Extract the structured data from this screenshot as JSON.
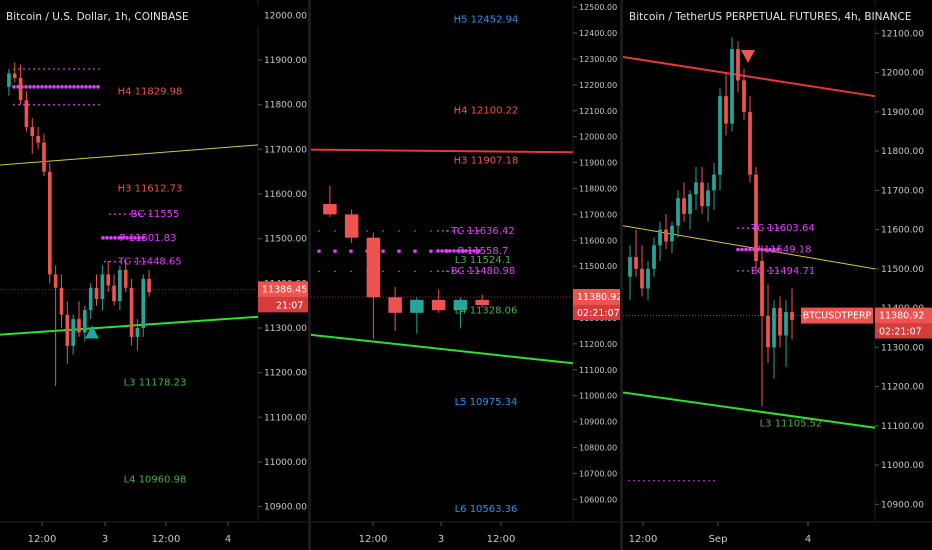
{
  "chart_data": [
    {
      "type": "candlestick",
      "title": "Bitcoin / U.S. Dollar, 1h, COINBASE",
      "y_ticks": [
        12000,
        11900,
        11800,
        11700,
        11600,
        11500,
        11400,
        11300,
        11200,
        11100,
        11000,
        10900
      ],
      "y_tick_labels": [
        "12000.00",
        "11900.00",
        "11800.00",
        "11700.00",
        "11600.00",
        "11500.00",
        "11400.00",
        "11300.00",
        "11200.00",
        "11100.00",
        "11000.00",
        "10900.00"
      ],
      "ylim": [
        10870,
        12030
      ],
      "x_ticks": [
        "12:00",
        "3",
        "12:00",
        "4"
      ],
      "price_label": "11386.45",
      "time_label": "21:07",
      "levels": [
        {
          "label": "H4 11829.98",
          "value": 11829.98,
          "color": "#ef5350"
        },
        {
          "label": "H3 11612.73",
          "value": 11612.73,
          "color": "#ef5350"
        },
        {
          "label": "BC 11555",
          "value": 11555,
          "color": "#e040fb"
        },
        {
          "label": "P 11501.83",
          "value": 11501.83,
          "color": "#e040fb"
        },
        {
          "label": "TC 11448.65",
          "value": 11448.65,
          "color": "#e040fb"
        },
        {
          "label": "L3 11178.23",
          "value": 11178.23,
          "color": "#4caf50"
        },
        {
          "label": "L4 10960.98",
          "value": 10960.98,
          "color": "#4caf50"
        }
      ],
      "candles": [
        {
          "o": 11840,
          "h": 11880,
          "l": 11820,
          "c": 11870
        },
        {
          "o": 11870,
          "h": 11895,
          "l": 11850,
          "c": 11860
        },
        {
          "o": 11860,
          "h": 11890,
          "l": 11800,
          "c": 11810
        },
        {
          "o": 11810,
          "h": 11830,
          "l": 11740,
          "c": 11750
        },
        {
          "o": 11750,
          "h": 11770,
          "l": 11690,
          "c": 11730
        },
        {
          "o": 11730,
          "h": 11750,
          "l": 11700,
          "c": 11715
        },
        {
          "o": 11715,
          "h": 11735,
          "l": 11640,
          "c": 11650
        },
        {
          "o": 11650,
          "h": 11670,
          "l": 11400,
          "c": 11420
        },
        {
          "o": 11420,
          "h": 11440,
          "l": 11170,
          "c": 11390
        },
        {
          "o": 11390,
          "h": 11420,
          "l": 11300,
          "c": 11330
        },
        {
          "o": 11330,
          "h": 11360,
          "l": 11220,
          "c": 11260
        },
        {
          "o": 11260,
          "h": 11330,
          "l": 11240,
          "c": 11320
        },
        {
          "o": 11320,
          "h": 11360,
          "l": 11280,
          "c": 11290
        },
        {
          "o": 11290,
          "h": 11350,
          "l": 11270,
          "c": 11340
        },
        {
          "o": 11340,
          "h": 11400,
          "l": 11320,
          "c": 11390
        },
        {
          "o": 11390,
          "h": 11420,
          "l": 11350,
          "c": 11365
        },
        {
          "o": 11365,
          "h": 11440,
          "l": 11340,
          "c": 11420
        },
        {
          "o": 11420,
          "h": 11450,
          "l": 11380,
          "c": 11395
        },
        {
          "o": 11395,
          "h": 11420,
          "l": 11350,
          "c": 11360
        },
        {
          "o": 11360,
          "h": 11440,
          "l": 11340,
          "c": 11430
        },
        {
          "o": 11430,
          "h": 11455,
          "l": 11380,
          "c": 11390
        },
        {
          "o": 11390,
          "h": 11410,
          "l": 11260,
          "c": 11280
        },
        {
          "o": 11280,
          "h": 11320,
          "l": 11250,
          "c": 11300
        },
        {
          "o": 11300,
          "h": 11420,
          "l": 11280,
          "c": 11410
        },
        {
          "o": 11410,
          "h": 11430,
          "l": 11370,
          "c": 11380
        }
      ],
      "upper_line": [
        [
          0,
          11665
        ],
        [
          1,
          11710
        ]
      ],
      "lower_line": [
        [
          0,
          11285
        ],
        [
          1,
          11325
        ]
      ]
    },
    {
      "type": "candlestick",
      "y_ticks": [
        12500,
        12400,
        12300,
        12200,
        12100,
        12000,
        11900,
        11800,
        11700,
        11600,
        11500,
        11400,
        11300,
        11200,
        11100,
        11000,
        10900,
        10800,
        10700,
        10600
      ],
      "y_tick_labels": [
        "12500.00",
        "12400.00",
        "12300.00",
        "12200.00",
        "12100.00",
        "12000.00",
        "11900.00",
        "11800.00",
        "11700.00",
        "11600.00",
        "11500.00",
        "11400.00",
        "11300.00",
        "11200.00",
        "11100.00",
        "11000.00",
        "10900.00",
        "10800.00",
        "10700.00",
        "10600.00"
      ],
      "ylim": [
        10520,
        12520
      ],
      "x_ticks": [
        "12:00",
        "3",
        "12:00"
      ],
      "price_label": "11380.92",
      "time_label": "02:21:07",
      "levels": [
        {
          "label": "H5 12452.94",
          "value": 12452.94,
          "color": "#2196f3"
        },
        {
          "label": "H4 12100.22",
          "value": 12100.22,
          "color": "#ef5350"
        },
        {
          "label": "H3 11907.18",
          "value": 11907.18,
          "color": "#ef5350"
        },
        {
          "label": "TC 11636.42",
          "value": 11636.42,
          "color": "#e040fb"
        },
        {
          "label": "P 11558.7",
          "value": 11558.7,
          "color": "#e040fb"
        },
        {
          "label": "L3 11524.1",
          "value": 11524.1,
          "color": "#4caf50"
        },
        {
          "label": "BC 11480.98",
          "value": 11480.98,
          "color": "#e040fb"
        },
        {
          "label": "L4 11328.06",
          "value": 11328.06,
          "color": "#4caf50"
        },
        {
          "label": "L5 10975.34",
          "value": 10975.34,
          "color": "#2196f3"
        },
        {
          "label": "L6 10563.36",
          "value": 10563.36,
          "color": "#2196f3"
        }
      ],
      "candles": [
        {
          "o": 11740,
          "h": 11810,
          "l": 11690,
          "c": 11700
        },
        {
          "o": 11700,
          "h": 11720,
          "l": 11590,
          "c": 11610
        },
        {
          "o": 11610,
          "h": 11630,
          "l": 11220,
          "c": 11380
        },
        {
          "o": 11380,
          "h": 11420,
          "l": 11250,
          "c": 11320
        },
        {
          "o": 11320,
          "h": 11380,
          "l": 11240,
          "c": 11370
        },
        {
          "o": 11370,
          "h": 11410,
          "l": 11320,
          "c": 11330
        },
        {
          "o": 11330,
          "h": 11380,
          "l": 11260,
          "c": 11370
        },
        {
          "o": 11370,
          "h": 11390,
          "l": 11340,
          "c": 11350
        }
      ],
      "upper_line": [
        [
          0,
          11950
        ],
        [
          1,
          11940
        ]
      ],
      "lower_line": [
        [
          0,
          11235
        ],
        [
          1,
          11125
        ]
      ]
    },
    {
      "type": "candlestick",
      "title": "Bitcoin / TetherUS PERPETUAL FUTURES, 4h, BINANCE",
      "y_ticks": [
        12100,
        12000,
        11900,
        11800,
        11700,
        11600,
        11500,
        11400,
        11300,
        11200,
        11100,
        11000,
        10900
      ],
      "y_tick_labels": [
        "12100.00",
        "12000.00",
        "11900.00",
        "11800.00",
        "11700.00",
        "11600.00",
        "11500.00",
        "11400.00",
        "11300.00",
        "11200.00",
        "11100.00",
        "11000.00",
        "10900.00"
      ],
      "ylim": [
        10860,
        12180
      ],
      "x_ticks": [
        "12:00",
        "Sep",
        "4"
      ],
      "price_label": "11380.92",
      "time_label": "02:21:07",
      "symbol_label": "BTCUSDTPERP",
      "levels": [
        {
          "label": "TC 11603.64",
          "value": 11603.64,
          "color": "#e040fb"
        },
        {
          "label": "P 11549.18",
          "value": 11549.18,
          "color": "#e040fb"
        },
        {
          "label": "BC 11494.71",
          "value": 11494.71,
          "color": "#e040fb"
        },
        {
          "label": "L3 11105.52",
          "value": 11105.52,
          "color": "#4caf50"
        }
      ],
      "candles": [
        {
          "o": 11480,
          "h": 11560,
          "l": 11420,
          "c": 11530
        },
        {
          "o": 11530,
          "h": 11600,
          "l": 11480,
          "c": 11500
        },
        {
          "o": 11500,
          "h": 11560,
          "l": 11430,
          "c": 11450
        },
        {
          "o": 11450,
          "h": 11520,
          "l": 11420,
          "c": 11500
        },
        {
          "o": 11500,
          "h": 11580,
          "l": 11480,
          "c": 11560
        },
        {
          "o": 11560,
          "h": 11620,
          "l": 11520,
          "c": 11600
        },
        {
          "o": 11600,
          "h": 11640,
          "l": 11550,
          "c": 11570
        },
        {
          "o": 11570,
          "h": 11620,
          "l": 11540,
          "c": 11610
        },
        {
          "o": 11610,
          "h": 11700,
          "l": 11580,
          "c": 11680
        },
        {
          "o": 11680,
          "h": 11720,
          "l": 11620,
          "c": 11640
        },
        {
          "o": 11640,
          "h": 11700,
          "l": 11600,
          "c": 11690
        },
        {
          "o": 11690,
          "h": 11760,
          "l": 11650,
          "c": 11720
        },
        {
          "o": 11720,
          "h": 11760,
          "l": 11640,
          "c": 11660
        },
        {
          "o": 11660,
          "h": 11720,
          "l": 11620,
          "c": 11700
        },
        {
          "o": 11700,
          "h": 11770,
          "l": 11650,
          "c": 11740
        },
        {
          "o": 11740,
          "h": 11960,
          "l": 11700,
          "c": 11940
        },
        {
          "o": 11940,
          "h": 12000,
          "l": 11840,
          "c": 11870
        },
        {
          "o": 11870,
          "h": 12090,
          "l": 11850,
          "c": 12060
        },
        {
          "o": 12060,
          "h": 12080,
          "l": 11950,
          "c": 11980
        },
        {
          "o": 11980,
          "h": 12010,
          "l": 11880,
          "c": 11900
        },
        {
          "o": 11900,
          "h": 11940,
          "l": 11720,
          "c": 11740
        },
        {
          "o": 11740,
          "h": 11760,
          "l": 11500,
          "c": 11520
        },
        {
          "o": 11520,
          "h": 11560,
          "l": 11150,
          "c": 11380
        },
        {
          "o": 11380,
          "h": 11460,
          "l": 11260,
          "c": 11300
        },
        {
          "o": 11300,
          "h": 11420,
          "l": 11220,
          "c": 11400
        },
        {
          "o": 11400,
          "h": 11430,
          "l": 11300,
          "c": 11330
        },
        {
          "o": 11330,
          "h": 11420,
          "l": 11250,
          "c": 11390
        },
        {
          "o": 11390,
          "h": 11450,
          "l": 11320,
          "c": 11370
        }
      ],
      "upper_line": [
        [
          0,
          12040
        ],
        [
          1,
          11940
        ]
      ],
      "lower_line": [
        [
          0,
          11185
        ],
        [
          1,
          11095
        ]
      ]
    }
  ]
}
